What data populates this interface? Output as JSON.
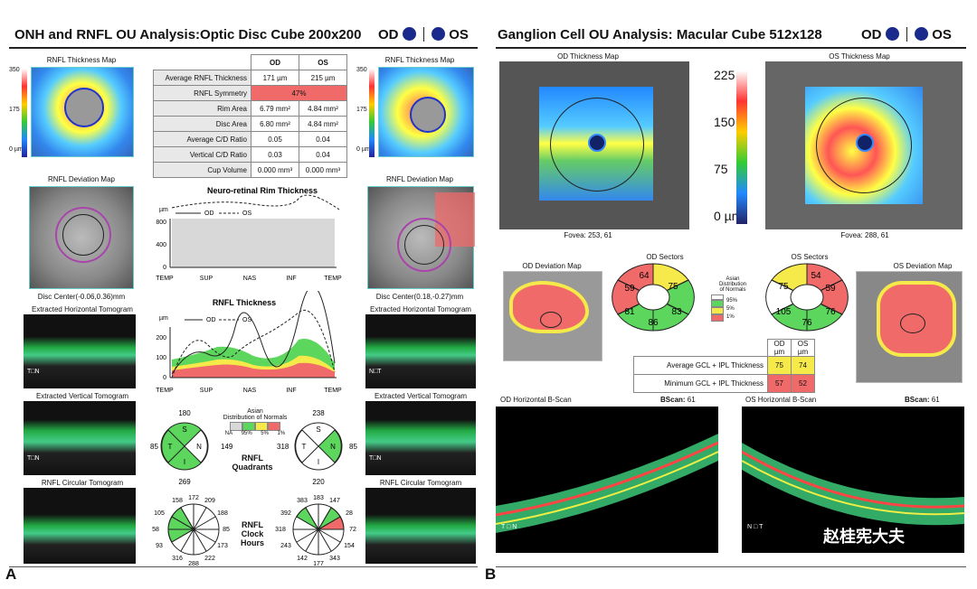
{
  "left": {
    "title": "ONH and RNFL OU Analysis:Optic Disc Cube 200x200",
    "od": "OD",
    "os": "OS",
    "thickness_map_label": "RNFL Thickness Map",
    "scale": [
      "350",
      "175",
      "0 µm"
    ],
    "table": {
      "headers": [
        "OD",
        "OS"
      ],
      "rows": [
        {
          "label": "Average RNFL Thickness",
          "od": "171 µm",
          "os": "215 µm"
        },
        {
          "label": "RNFL Symmetry",
          "merged": "47%"
        },
        {
          "label": "Rim Area",
          "od": "6.79 mm²",
          "os": "4.84 mm²"
        },
        {
          "label": "Disc Area",
          "od": "6.80 mm²",
          "os": "4.84 mm²"
        },
        {
          "label": "Average C/D Ratio",
          "od": "0.05",
          "os": "0.04"
        },
        {
          "label": "Vertical C/D Ratio",
          "od": "0.03",
          "os": "0.04"
        },
        {
          "label": "Cup Volume",
          "od": "0.000 mm³",
          "os": "0.000 mm³"
        }
      ]
    },
    "deviation_map_label": "RNFL Deviation Map",
    "disc_center_od": "Disc Center(-0.06,0.36)mm",
    "disc_center_os": "Disc Center(0.18,-0.27)mm",
    "horiz_tomo": "Extracted Horizontal Tomogram",
    "vert_tomo": "Extracted Vertical Tomogram",
    "circ_tomo": "RNFL Circular Tomogram",
    "rim_title": "Neuro-retinal Rim Thickness",
    "rnfl_title": "RNFL Thickness",
    "legend_od": "OD",
    "legend_os": "OS",
    "unit": "µm",
    "y_ticks_rim": [
      "800",
      "400",
      "0"
    ],
    "y_ticks_rnfl": [
      "200",
      "100",
      "0"
    ],
    "x_ticks": [
      "TEMP",
      "SUP",
      "NAS",
      "INF",
      "TEMP"
    ],
    "quadrants_label_1": "RNFL",
    "quadrants_label_2": "Quadrants",
    "clock_label_1": "RNFL",
    "clock_label_2": "Clock",
    "clock_label_3": "Hours",
    "od_quadrants": {
      "S": "180",
      "N": "149",
      "I": "269",
      "T": "85"
    },
    "os_quadrants": {
      "S": "238",
      "N": "85",
      "I": "220",
      "T": "318"
    },
    "quad_letters": [
      "S",
      "N",
      "I",
      "T"
    ],
    "od_clock": [
      "172",
      "209",
      "188",
      "85",
      "173",
      "222",
      "288",
      "316",
      "93",
      "58",
      "105",
      "158"
    ],
    "os_clock": [
      "183",
      "147",
      "28",
      "72",
      "154",
      "343",
      "177",
      "142",
      "243",
      "318",
      "392",
      "383"
    ],
    "norms_title_1": "Asian",
    "norms_title_2": "Distribution of Normals",
    "norms_labels": [
      "NA",
      "95%",
      "5%",
      "1%"
    ],
    "panel": "A",
    "tn": "T",
    "nn": "N"
  },
  "right": {
    "title": "Ganglion Cell OU Analysis: Macular Cube 512x128",
    "od": "OD",
    "os": "OS",
    "od_thickness_map": "OD Thickness Map",
    "os_thickness_map": "OS Thickness Map",
    "scale": [
      "225",
      "150",
      "75",
      "0 µm"
    ],
    "fovea_od": "Fovea: 253, 61",
    "fovea_os": "Fovea: 288, 61",
    "od_deviation": "OD Deviation Map",
    "os_deviation": "OS Deviation Map",
    "od_sectors": "OD Sectors",
    "os_sectors": "OS Sectors",
    "od_sector_values": [
      "64",
      "75",
      "83",
      "86",
      "81",
      "59"
    ],
    "os_sector_values": [
      "54",
      "59",
      "76",
      "76",
      "105",
      "75"
    ],
    "norms_1": "Asian",
    "norms_2": "Distribution",
    "norms_3": "of Normals",
    "norms_labels": [
      "95%",
      "5%",
      "1%"
    ],
    "gcl_table": {
      "headers": [
        "OD µm",
        "OS µm"
      ],
      "rows": [
        {
          "label": "Average GCL + IPL Thickness",
          "od": "75",
          "os": "74"
        },
        {
          "label": "Minimum GCL + IPL Thickness",
          "od": "57",
          "os": "52"
        }
      ]
    },
    "od_bscan": "OD Horizontal B-Scan",
    "os_bscan": "OS Horizontal B-Scan",
    "bscan_label": "BScan:",
    "bscan_val": "61",
    "watermark": "赵桂宪大夫",
    "panel": "B",
    "tn": "T",
    "nn": "N"
  },
  "colors": {
    "red": "#f06a6a",
    "yellow": "#f5ea4a",
    "green": "#5cd65c",
    "gray": "#d8d8d8",
    "od_blue": "#1a2a8c"
  }
}
